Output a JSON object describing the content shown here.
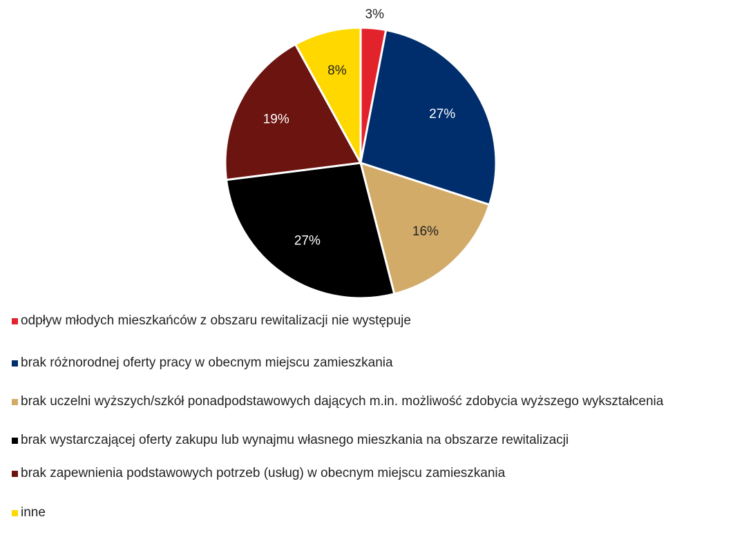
{
  "chart_data": {
    "type": "pie",
    "categories": [
      "odpływ młodych mieszkańców z obszaru rewitalizacji nie występuje",
      "brak różnorodnej oferty pracy w obecnym miejscu zamieszkania",
      "brak uczelni wyższych/szkół ponadpodstawowych dających m.in. możliwość zdobycia wyższego wykształcenia",
      "brak wystarczającej oferty zakupu lub wynajmu własnego mieszkania na obszarze rewitalizacji",
      "brak zapewnienia podstawowych potrzeb (usług) w obecnym miejscu zamieszkania",
      "inne"
    ],
    "values": [
      3,
      27,
      16,
      27,
      19,
      8
    ],
    "value_labels": [
      "3%",
      "27%",
      "16%",
      "27%",
      "19%",
      "8%"
    ],
    "colors": [
      "#e3232c",
      "#002e6c",
      "#d2ab69",
      "#000000",
      "#6b1410",
      "#ffd800"
    ],
    "legend": "bottom"
  }
}
